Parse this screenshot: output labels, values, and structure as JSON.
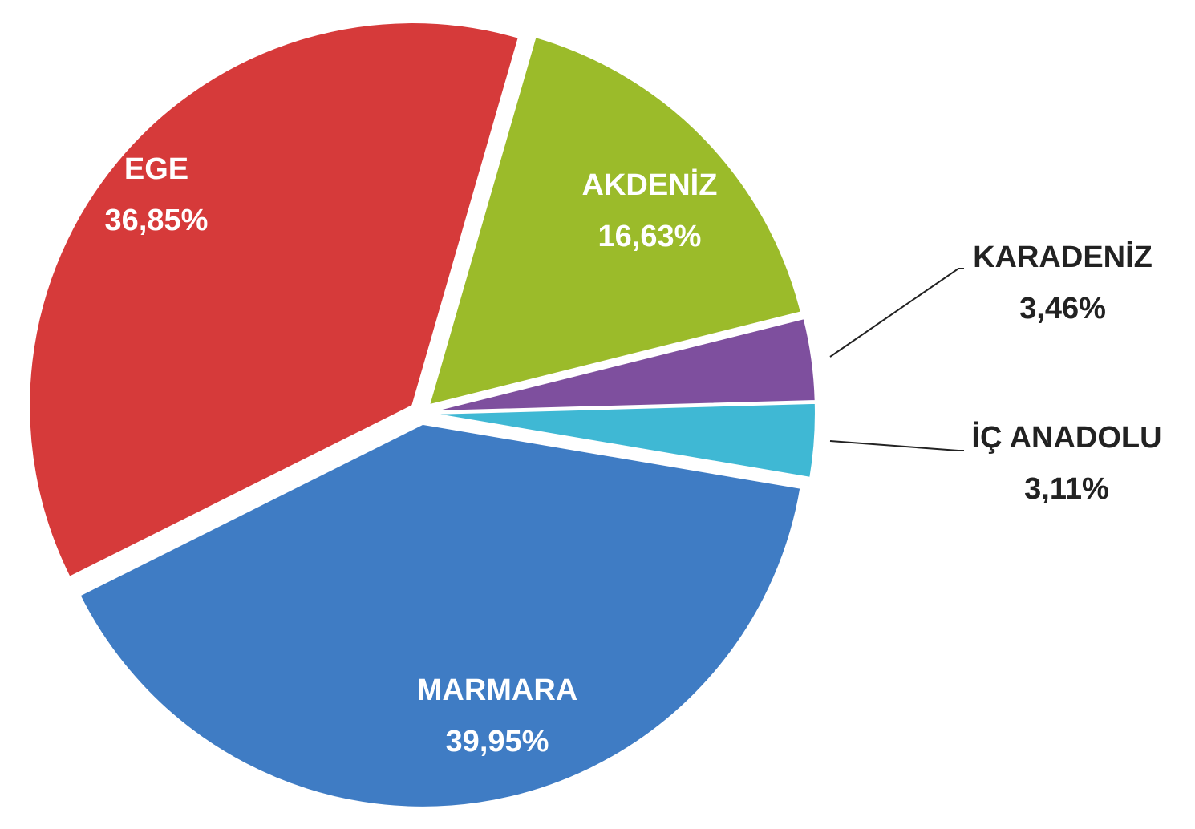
{
  "chart_data": {
    "type": "pie",
    "categories": [
      "AKDENİZ",
      "KARADENİZ",
      "İÇ ANADOLU",
      "MARMARA",
      "EGE"
    ],
    "values": [
      16.63,
      3.46,
      3.11,
      39.95,
      36.85
    ],
    "value_labels": [
      "16,63%",
      "3,46%",
      "3,11%",
      "39,95%",
      "36,85%"
    ],
    "colors": [
      "#9bbb2a",
      "#7e4f9e",
      "#3fb8d4",
      "#3f7cc4",
      "#d63a3a"
    ]
  }
}
